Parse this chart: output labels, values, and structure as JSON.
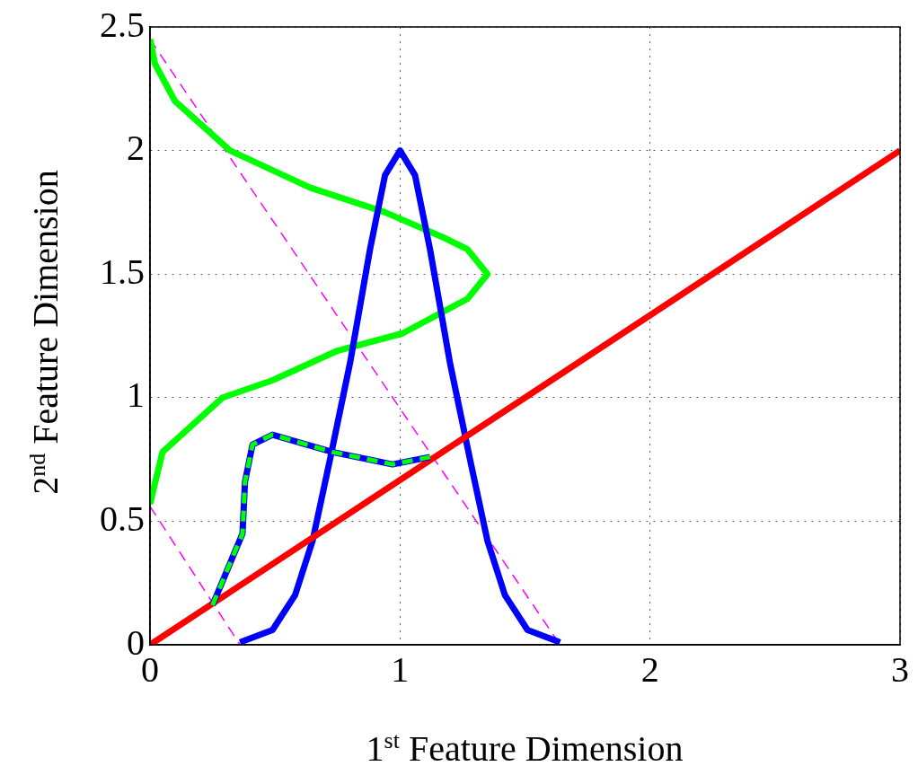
{
  "chart_data": {
    "type": "line",
    "xlabel": "1$^{st}$ Feature Dimension",
    "ylabel": "2$^{nd}$ Feature Dimension",
    "xlim": [
      0,
      3
    ],
    "xticks": [
      0,
      1,
      2,
      3
    ],
    "ylim": [
      0,
      2.5
    ],
    "yticks": [
      0,
      0.5,
      1,
      1.5,
      2,
      2.5
    ],
    "grid": true,
    "legend": false,
    "series": [
      {
        "color": "#ff00ff",
        "line_style": "dashed",
        "x": [
          0,
          1.64
        ],
        "values": [
          2.45,
          0
        ]
      },
      {
        "color": "#ff00ff",
        "line_style": "dashed",
        "x": [
          0,
          0.36
        ],
        "values": [
          0.56,
          0
        ]
      },
      {
        "color": "#00ff00",
        "x": [
          0,
          0.02,
          0.1,
          0.32,
          0.64,
          0.94,
          1.17,
          1.27,
          1.35,
          1.27,
          1.01,
          0.75,
          0.49,
          0.29,
          0.05,
          0
        ],
        "values": [
          2.45,
          2.35,
          2.2,
          2,
          1.85,
          1.75,
          1.65,
          1.6,
          1.5,
          1.4,
          1.26,
          1.19,
          1.07,
          1,
          0.78,
          0.57
        ]
      },
      {
        "color": "#0000ff",
        "x": [
          0.36,
          0.49,
          0.58,
          0.65,
          0.72,
          0.8,
          0.88,
          0.94,
          1,
          1.06,
          1.12,
          1.2,
          1.28,
          1.35,
          1.42,
          1.51,
          1.64
        ],
        "values": [
          0.01,
          0.06,
          0.2,
          0.42,
          0.75,
          1.14,
          1.6,
          1.9,
          2,
          1.9,
          1.6,
          1.14,
          0.75,
          0.42,
          0.2,
          0.06,
          0.01
        ]
      },
      {
        "color": "#ff0000",
        "x": [
          0,
          3
        ],
        "values": [
          0,
          2
        ]
      },
      {
        "color": "#0000ff",
        "x": [
          0.25,
          0.37,
          0.38,
          0.41,
          0.49,
          0.73,
          0.97,
          1.12
        ],
        "values": [
          0.16,
          0.45,
          0.66,
          0.81,
          0.85,
          0.78,
          0.73,
          0.76
        ]
      },
      {
        "color": "#00ff00",
        "line_style": "dashed",
        "x": [
          0.25,
          0.37,
          0.38,
          0.41,
          0.49,
          0.73,
          0.97,
          1.12
        ],
        "values": [
          0.16,
          0.45,
          0.66,
          0.81,
          0.85,
          0.78,
          0.73,
          0.76
        ]
      }
    ]
  }
}
